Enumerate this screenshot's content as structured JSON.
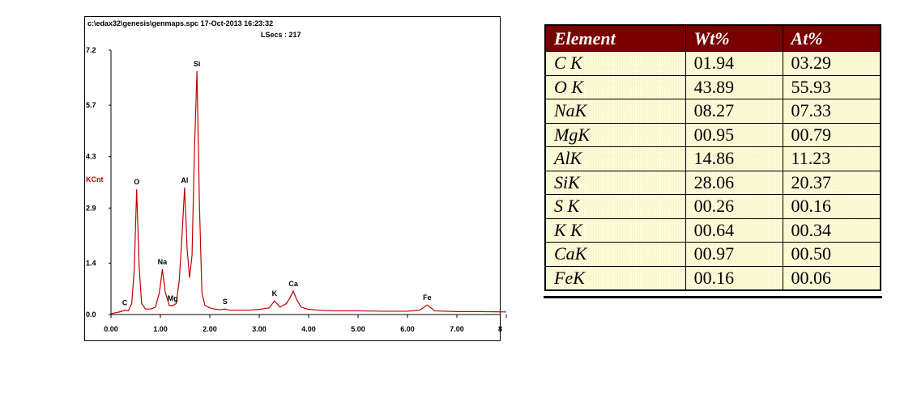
{
  "chart_data": {
    "type": "line",
    "title": "c:\\edax32\\genesis\\genmaps.spc  17-Oct-2013 16:23:32",
    "subtitle": "LSecs :  217",
    "y_label": "KCnt",
    "xlim": [
      0,
      8
    ],
    "ylim": [
      0,
      7.2
    ],
    "xticks": [
      {
        "value": 0,
        "label": "0.00"
      },
      {
        "value": 1,
        "label": "1.00"
      },
      {
        "value": 2,
        "label": "2.00"
      },
      {
        "value": 3,
        "label": "3.00"
      },
      {
        "value": 4,
        "label": "4.00"
      },
      {
        "value": 5,
        "label": "5.00"
      },
      {
        "value": 6,
        "label": "6.00"
      },
      {
        "value": 7,
        "label": "7.00"
      },
      8
    ],
    "yticks": [
      {
        "value": 0,
        "label": "0.0"
      },
      1.4,
      2.9,
      4.3,
      5.7,
      7.2
    ],
    "x": [
      0.0,
      0.1,
      0.2,
      0.28,
      0.35,
      0.42,
      0.47,
      0.52,
      0.57,
      0.62,
      0.7,
      0.8,
      0.9,
      0.98,
      1.04,
      1.1,
      1.18,
      1.25,
      1.32,
      1.38,
      1.44,
      1.49,
      1.54,
      1.59,
      1.64,
      1.69,
      1.74,
      1.79,
      1.84,
      1.9,
      2.0,
      2.1,
      2.2,
      2.31,
      2.4,
      2.6,
      2.8,
      3.0,
      3.2,
      3.31,
      3.42,
      3.55,
      3.62,
      3.69,
      3.76,
      3.85,
      4.0,
      4.2,
      4.5,
      5.0,
      5.5,
      6.0,
      6.25,
      6.4,
      6.55,
      7.0,
      7.5,
      8.0
    ],
    "series": [
      {
        "color": "#c00000",
        "values": [
          0.02,
          0.05,
          0.08,
          0.12,
          0.1,
          0.3,
          1.2,
          3.41,
          1.3,
          0.3,
          0.15,
          0.15,
          0.2,
          0.6,
          1.23,
          0.6,
          0.25,
          0.24,
          0.3,
          0.9,
          2.2,
          3.46,
          1.8,
          1.0,
          1.6,
          4.5,
          6.63,
          3.0,
          0.6,
          0.25,
          0.18,
          0.15,
          0.13,
          0.15,
          0.12,
          0.12,
          0.12,
          0.14,
          0.18,
          0.37,
          0.2,
          0.3,
          0.45,
          0.64,
          0.4,
          0.2,
          0.14,
          0.12,
          0.1,
          0.1,
          0.09,
          0.09,
          0.12,
          0.26,
          0.1,
          0.08,
          0.08,
          0.07
        ]
      }
    ],
    "annotations": [
      {
        "text": "C",
        "x": 0.28
      },
      {
        "text": "O",
        "x": 0.52
      },
      {
        "text": "Na",
        "x": 1.04
      },
      {
        "text": "Mg",
        "x": 1.25
      },
      {
        "text": "Al",
        "x": 1.49
      },
      {
        "text": "Si",
        "x": 1.74
      },
      {
        "text": "S",
        "x": 2.31
      },
      {
        "text": "K",
        "x": 3.31
      },
      {
        "text": "Ca",
        "x": 3.69
      },
      {
        "text": "Fe",
        "x": 6.4
      }
    ]
  },
  "table": {
    "header": [
      "Element",
      "Wt%",
      "At%"
    ],
    "rows": [
      [
        "C K",
        "01.94",
        "03.29"
      ],
      [
        "O K",
        "43.89",
        "55.93"
      ],
      [
        "NaK",
        "08.27",
        "07.33"
      ],
      [
        "MgK",
        "00.95",
        "00.79"
      ],
      [
        "AlK",
        "14.86",
        "11.23"
      ],
      [
        "SiK",
        "28.06",
        "20.37"
      ],
      [
        "S K",
        "00.26",
        "00.16"
      ],
      [
        "K K",
        "00.64",
        "00.34"
      ],
      [
        "CaK",
        "00.97",
        "00.50"
      ],
      [
        "FeK",
        "00.16",
        "00.06"
      ]
    ]
  }
}
